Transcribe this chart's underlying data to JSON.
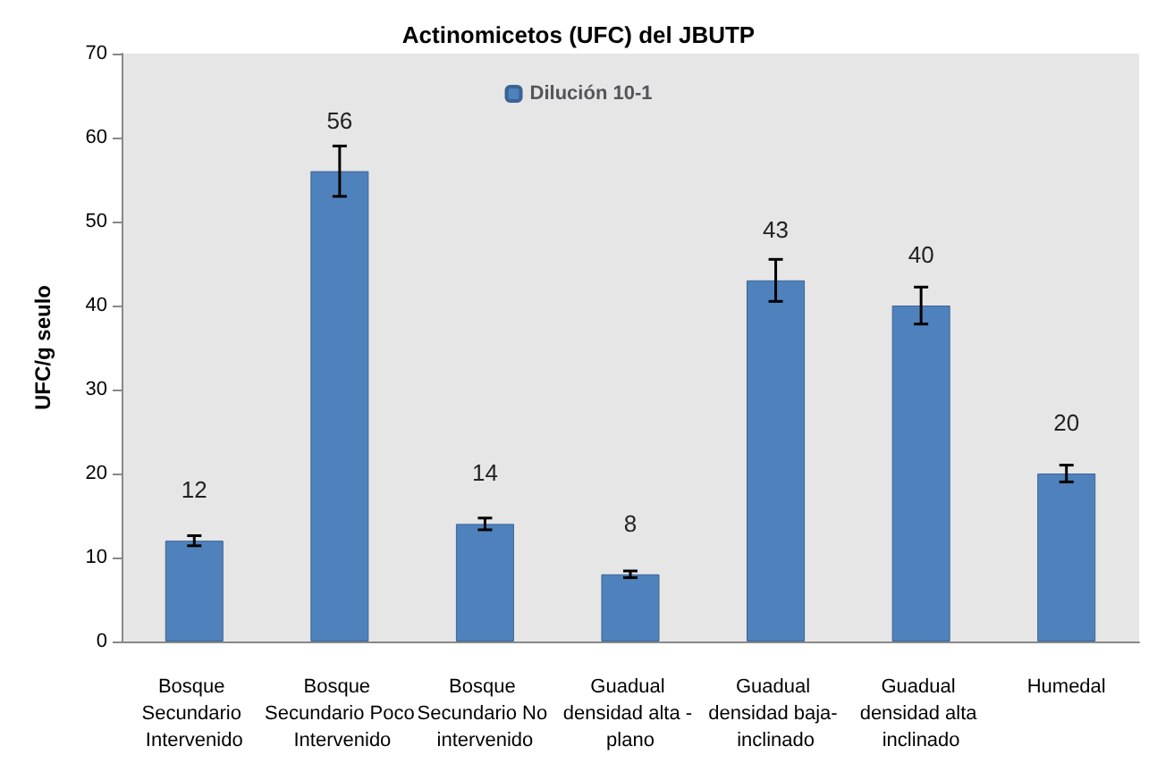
{
  "chart_data": {
    "type": "bar",
    "title": "Actinomicetos (UFC) del JBUTP",
    "ylabel": "UFC/g seulo",
    "categories": [
      "Bosque Secundario Intervenido",
      "Bosque Secundario Poco Intervenido",
      "Bosque Secundario No intervenido",
      "Guadual densidad alta - plano",
      "Guadual densidad baja- inclinado",
      "Guadual densidad alta inclinado",
      "Humedal"
    ],
    "series": [
      {
        "name": "Dilución 10-1",
        "color": "#4f81bd",
        "values": [
          12,
          56,
          14,
          8,
          43,
          40,
          20
        ],
        "errors": [
          0.6,
          3,
          0.7,
          0.4,
          2.5,
          2.2,
          1
        ]
      }
    ],
    "ylim": [
      0,
      70
    ],
    "yticks": [
      0,
      10,
      20,
      30,
      40,
      50,
      60,
      70
    ],
    "grid": false,
    "legend": "top",
    "data_labels": true
  }
}
